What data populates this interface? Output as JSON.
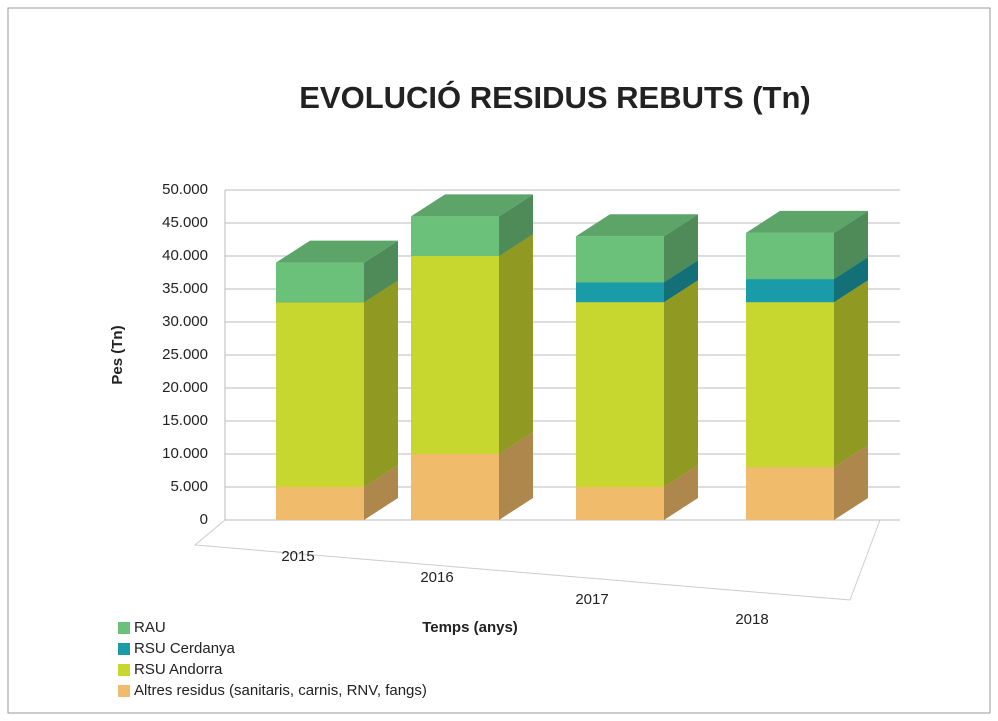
{
  "chart_data": {
    "type": "bar3d_stacked",
    "title": "EVOLUCIÓ RESIDUS REBUTS (Tn)",
    "ylabel": "Pes (Tn)",
    "xlabel": "Temps (anys)",
    "categories": [
      "2015",
      "2016",
      "2017",
      "2018"
    ],
    "series": [
      {
        "name": "Altres residus (sanitaris, carnis, RNV, fangs)",
        "color": "#f0bb6a",
        "values": [
          5000,
          10000,
          5000,
          8000
        ]
      },
      {
        "name": "RSU Andorra",
        "color": "#c8d630",
        "values": [
          28000,
          30000,
          28000,
          25000
        ]
      },
      {
        "name": "RSU Cerdanya",
        "color": "#1a9ca8",
        "values": [
          0,
          0,
          3000,
          3500
        ]
      },
      {
        "name": "RAU",
        "color": "#6cc17a",
        "values": [
          6000,
          6000,
          7000,
          7000
        ]
      }
    ],
    "ylim": [
      0,
      50000
    ],
    "yticks": [
      0,
      {
        "value": 5000,
        "label": "5.000"
      },
      {
        "value": 10000,
        "label": "10.000"
      },
      {
        "value": 15000,
        "label": "15.000"
      },
      {
        "value": 20000,
        "label": "20.000"
      },
      {
        "value": 25000,
        "label": "25.000"
      },
      {
        "value": 30000,
        "label": "30.000"
      },
      {
        "value": 35000,
        "label": "35.000"
      },
      {
        "value": 40000,
        "label": "40.000"
      },
      {
        "value": 45000,
        "label": "45.000"
      },
      {
        "value": 50000,
        "label": "50.000"
      }
    ],
    "grid": true,
    "legend": "bottom-left"
  }
}
